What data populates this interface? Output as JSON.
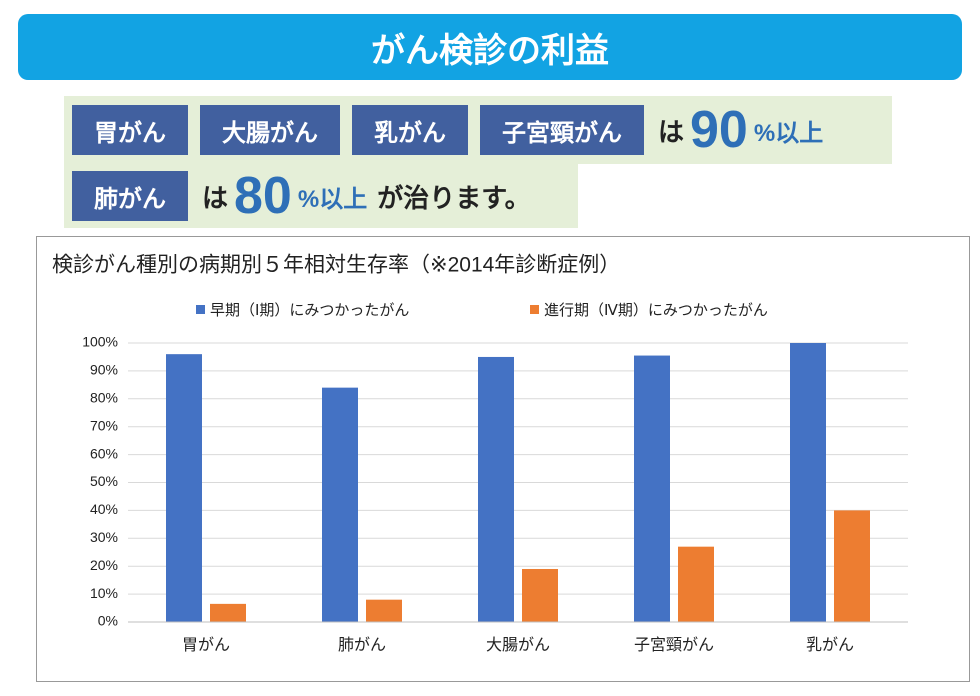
{
  "header": {
    "title": "がん検診の利益"
  },
  "highlight": {
    "row1": {
      "tags": [
        "胃がん",
        "大腸がん",
        "乳がん",
        "子宮頸がん"
      ],
      "particle": "は",
      "number": 90,
      "unit": "%以上"
    },
    "row2": {
      "tags": [
        "肺がん"
      ],
      "particle": "は",
      "number": 80,
      "unit": "%以上",
      "suffix": "が治ります。"
    }
  },
  "chart_data": {
    "type": "bar",
    "title": "検診がん種別の病期別５年相対生存率（※2014年診断症例）",
    "categories": [
      "胃がん",
      "肺がん",
      "大腸がん",
      "子宮頸がん",
      "乳がん"
    ],
    "series": [
      {
        "name": "早期（Ⅰ期）にみつかったがん",
        "color": "#4472c4",
        "values": [
          96,
          84,
          95,
          95.5,
          100
        ]
      },
      {
        "name": "進行期（Ⅳ期）にみつかったがん",
        "color": "#ed7d31",
        "values": [
          6.5,
          8,
          19,
          27,
          40
        ]
      }
    ],
    "ylim": [
      0,
      100
    ],
    "yticks": [
      {
        "value": 0,
        "label": "0%"
      },
      {
        "value": 10,
        "label": "10%"
      },
      {
        "value": 20,
        "label": "20%"
      },
      {
        "value": 30,
        "label": "30%"
      },
      {
        "value": 40,
        "label": "40%"
      },
      {
        "value": 50,
        "label": "50%"
      },
      {
        "value": 60,
        "label": "60%"
      },
      {
        "value": 70,
        "label": "70%"
      },
      {
        "value": 80,
        "label": "80%"
      },
      {
        "value": 90,
        "label": "90%"
      },
      {
        "value": 100,
        "label": "100%"
      }
    ],
    "grid": true,
    "legend": "top"
  }
}
